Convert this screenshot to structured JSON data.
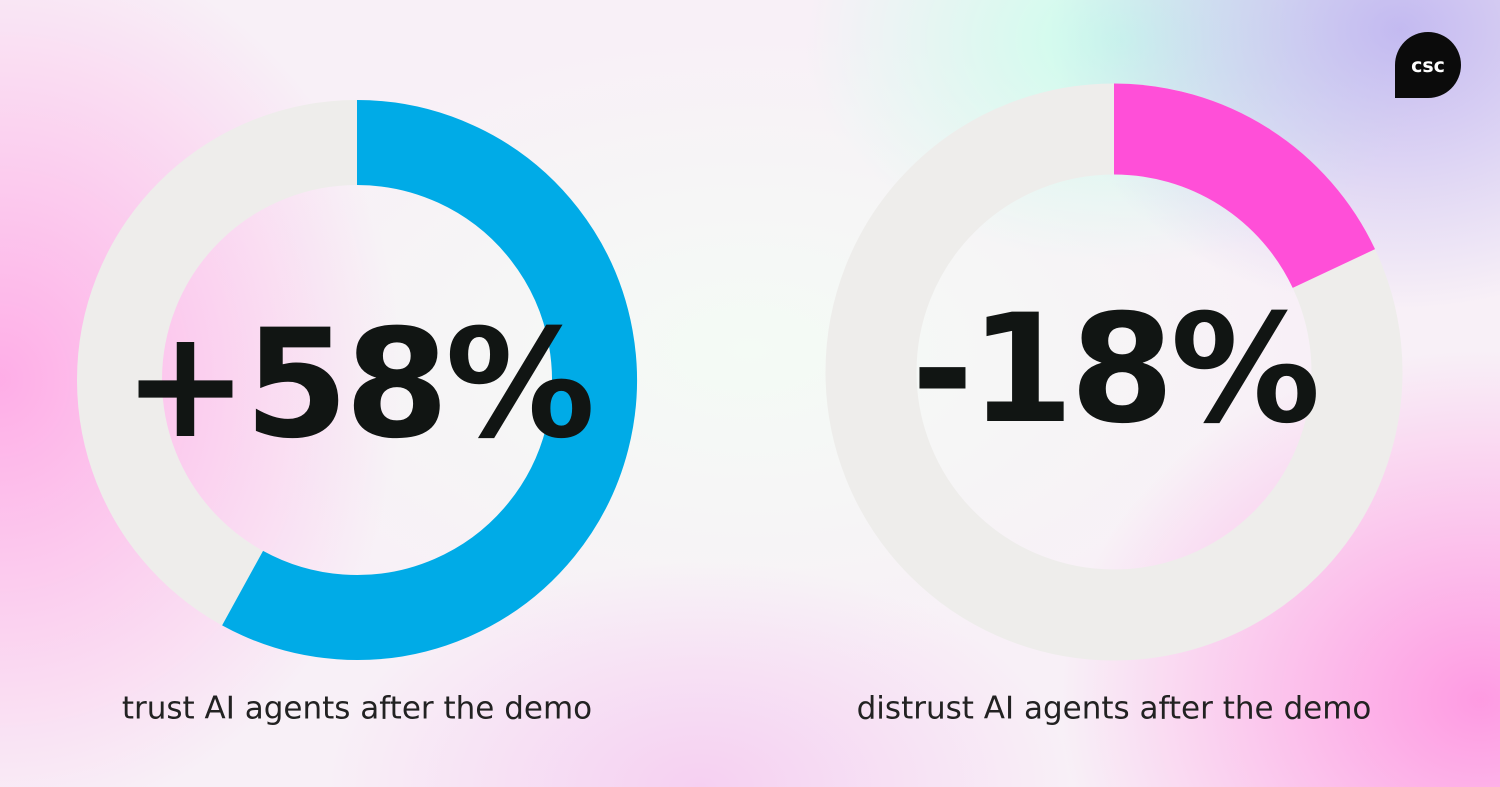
{
  "logo": "csc",
  "chart_data": [
    {
      "type": "donut",
      "values": [
        58
      ],
      "value_labels": [
        "+58%"
      ],
      "caption": "trust AI agents after the demo",
      "color": "#00abe7",
      "track_color": "#eeedeb"
    },
    {
      "type": "donut",
      "values": [
        -18
      ],
      "value_labels": [
        "-18%"
      ],
      "caption": "distrust AI agents after the demo",
      "color": "#ff4fd8",
      "track_color": "#eeedeb"
    }
  ]
}
